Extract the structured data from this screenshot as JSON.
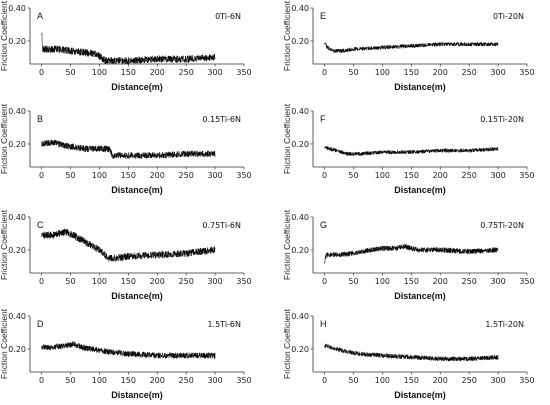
{
  "figure": {
    "background": "#ffffff",
    "line_color": "#000000",
    "axis_color": "#333333"
  },
  "chart_data": [
    {
      "type": "line",
      "panel": "A",
      "label": "0Ti-6N",
      "xlabel": "Distance(m)",
      "ylabel": "Friction Coefficient",
      "xlim": [
        -20,
        350
      ],
      "ylim": [
        0.06,
        0.4
      ],
      "xticks": [
        0,
        50,
        100,
        150,
        200,
        250,
        300,
        350
      ],
      "yticks": [
        0.2,
        0.4
      ],
      "ytick_labels": [
        "0.20",
        "0.40"
      ],
      "noise": 0.022,
      "series": [
        {
          "x": [
            0,
            2,
            8,
            25,
            50,
            75,
            95,
            110,
            125,
            150,
            200,
            250,
            300
          ],
          "y": [
            0.26,
            0.15,
            0.15,
            0.15,
            0.14,
            0.13,
            0.12,
            0.08,
            0.08,
            0.08,
            0.09,
            0.09,
            0.1
          ]
        }
      ]
    },
    {
      "type": "line",
      "panel": "B",
      "label": "0.15Ti-6N",
      "xlabel": "Distance(m)",
      "ylabel": "Friction Coefficient",
      "xlim": [
        -20,
        350
      ],
      "ylim": [
        0.06,
        0.4
      ],
      "xticks": [
        0,
        50,
        100,
        150,
        200,
        250,
        300,
        350
      ],
      "yticks": [
        0.2,
        0.4
      ],
      "ytick_labels": [
        "0.20",
        "0.40"
      ],
      "noise": 0.02,
      "series": [
        {
          "x": [
            0,
            20,
            40,
            60,
            80,
            100,
            118,
            122,
            150,
            200,
            250,
            300
          ],
          "y": [
            0.2,
            0.21,
            0.19,
            0.18,
            0.17,
            0.17,
            0.17,
            0.13,
            0.13,
            0.13,
            0.14,
            0.14
          ]
        }
      ]
    },
    {
      "type": "line",
      "panel": "C",
      "label": "0.75Ti-6N",
      "xlabel": "Distance(m)",
      "ylabel": "Friction Coefficient",
      "xlim": [
        -20,
        350
      ],
      "ylim": [
        0.06,
        0.4
      ],
      "xticks": [
        0,
        50,
        100,
        150,
        200,
        250,
        300,
        350
      ],
      "yticks": [
        0.2,
        0.4
      ],
      "ytick_labels": [
        "0.20",
        "0.40"
      ],
      "noise": 0.022,
      "series": [
        {
          "x": [
            0,
            20,
            40,
            55,
            70,
            85,
            100,
            115,
            130,
            150,
            200,
            250,
            300
          ],
          "y": [
            0.29,
            0.29,
            0.31,
            0.29,
            0.26,
            0.23,
            0.2,
            0.15,
            0.15,
            0.16,
            0.17,
            0.18,
            0.2
          ]
        }
      ]
    },
    {
      "type": "line",
      "panel": "D",
      "label": "1.5Ti-6N",
      "xlabel": "Distance(m)",
      "ylabel": "Friction Coefficient",
      "xlim": [
        -20,
        350
      ],
      "ylim": [
        0.06,
        0.4
      ],
      "xticks": [
        0,
        50,
        100,
        150,
        200,
        250,
        300,
        350
      ],
      "yticks": [
        0.2,
        0.4
      ],
      "ytick_labels": [
        "0.20",
        "0.40"
      ],
      "noise": 0.018,
      "series": [
        {
          "x": [
            0,
            20,
            40,
            55,
            70,
            100,
            150,
            200,
            250,
            300
          ],
          "y": [
            0.21,
            0.21,
            0.22,
            0.23,
            0.21,
            0.19,
            0.17,
            0.16,
            0.16,
            0.16
          ]
        }
      ]
    },
    {
      "type": "line",
      "panel": "E",
      "label": "0Ti-20N",
      "xlabel": "Distance(m)",
      "ylabel": "Friction Coefficient",
      "xlim": [
        -20,
        350
      ],
      "ylim": [
        0.06,
        0.4
      ],
      "xticks": [
        0,
        50,
        100,
        150,
        200,
        250,
        300,
        350
      ],
      "yticks": [
        0.2,
        0.4
      ],
      "ytick_labels": [
        "0.20",
        "0.40"
      ],
      "noise": 0.012,
      "series": [
        {
          "x": [
            0,
            5,
            15,
            30,
            50,
            100,
            150,
            200,
            250,
            300
          ],
          "y": [
            0.19,
            0.16,
            0.14,
            0.14,
            0.15,
            0.16,
            0.17,
            0.18,
            0.18,
            0.18
          ]
        }
      ]
    },
    {
      "type": "line",
      "panel": "F",
      "label": "0.15Ti-20N",
      "xlabel": "Distance(m)",
      "ylabel": "Friction Coefficient",
      "xlim": [
        -20,
        350
      ],
      "ylim": [
        0.06,
        0.4
      ],
      "xticks": [
        0,
        50,
        100,
        150,
        200,
        250,
        300,
        350
      ],
      "yticks": [
        0.2,
        0.4
      ],
      "ytick_labels": [
        "0.20",
        "0.40"
      ],
      "noise": 0.012,
      "series": [
        {
          "x": [
            0,
            20,
            40,
            60,
            100,
            150,
            200,
            250,
            300
          ],
          "y": [
            0.18,
            0.16,
            0.14,
            0.14,
            0.15,
            0.15,
            0.16,
            0.16,
            0.17
          ]
        }
      ]
    },
    {
      "type": "line",
      "panel": "G",
      "label": "0.75Ti-20N",
      "xlabel": "Distance(m)",
      "ylabel": "Friction Coefficient",
      "xlim": [
        -20,
        350
      ],
      "ylim": [
        0.06,
        0.4
      ],
      "xticks": [
        0,
        50,
        100,
        150,
        200,
        250,
        300,
        350
      ],
      "yticks": [
        0.2,
        0.4
      ],
      "ytick_labels": [
        "0.20",
        "0.40"
      ],
      "noise": 0.016,
      "series": [
        {
          "x": [
            0,
            3,
            20,
            50,
            80,
            100,
            120,
            140,
            160,
            200,
            250,
            300
          ],
          "y": [
            0.13,
            0.17,
            0.17,
            0.18,
            0.2,
            0.21,
            0.21,
            0.22,
            0.2,
            0.2,
            0.19,
            0.2
          ]
        }
      ]
    },
    {
      "type": "line",
      "panel": "H",
      "label": "1.5Ti-20N",
      "xlabel": "Distance(m)",
      "ylabel": "Friction Coefficient",
      "xlim": [
        -20,
        350
      ],
      "ylim": [
        0.06,
        0.4
      ],
      "xticks": [
        0,
        50,
        100,
        150,
        200,
        250,
        300,
        350
      ],
      "yticks": [
        0.2,
        0.4
      ],
      "ytick_labels": [
        "0.20",
        "0.40"
      ],
      "noise": 0.014,
      "series": [
        {
          "x": [
            0,
            10,
            30,
            60,
            100,
            150,
            200,
            250,
            300
          ],
          "y": [
            0.22,
            0.21,
            0.19,
            0.17,
            0.16,
            0.15,
            0.14,
            0.14,
            0.15
          ]
        }
      ]
    }
  ]
}
